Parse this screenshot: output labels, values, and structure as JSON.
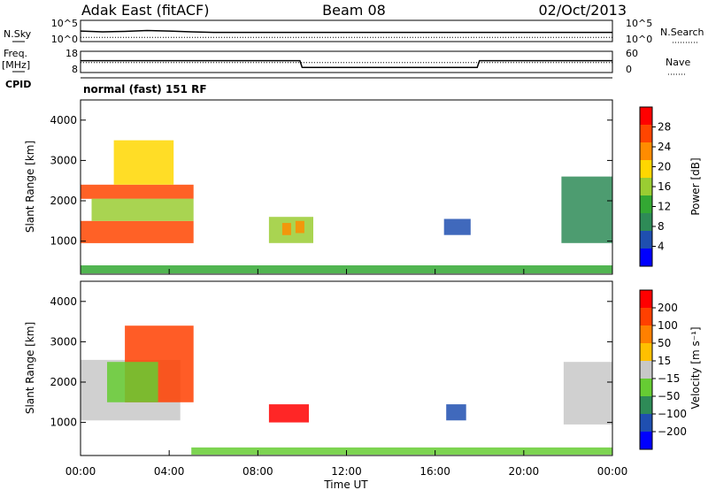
{
  "header": {
    "station": "Adak East (fitACF)",
    "beam": "Beam 08",
    "date": "02/Oct/2013"
  },
  "noise_panel": {
    "left_label": "N.Sky",
    "left_ticks": [
      "10^5",
      "10^0"
    ],
    "right_ticks": [
      "10^5",
      "10^0"
    ],
    "right_label": "N.Search"
  },
  "freq_panel": {
    "left_label_top": "Freq.",
    "left_label_unit": "[MHz]",
    "left_ticks": [
      "18",
      "8"
    ],
    "right_ticks": [
      "60",
      "0"
    ],
    "right_label": "Nave",
    "cpid_label": "CPID"
  },
  "cpid_panel": {
    "text": "normal (fast) 151 RF"
  },
  "x_axis": {
    "label": "Time UT",
    "ticks": [
      "00:00",
      "04:00",
      "08:00",
      "12:00",
      "16:00",
      "20:00",
      "00:00"
    ]
  },
  "power_panel": {
    "ylabel": "Slant Range [km]",
    "yticks": [
      "4000",
      "3000",
      "2000",
      "1000"
    ],
    "colorbar_label": "Power [dB]",
    "colorbar_ticks": [
      "28",
      "24",
      "20",
      "16",
      "12",
      "8",
      "4"
    ],
    "colors": [
      "#0000ff",
      "#1f4fb0",
      "#2e8b57",
      "#33a833",
      "#9acd32",
      "#ffd700",
      "#ff8c00",
      "#ff4500",
      "#ff0000"
    ]
  },
  "velocity_panel": {
    "ylabel": "Slant Range [km]",
    "yticks": [
      "4000",
      "3000",
      "2000",
      "1000"
    ],
    "colorbar_label": "Velocity [m s⁻¹]",
    "colorbar_ticks": [
      "200",
      "100",
      "50",
      "15",
      "−15",
      "−50",
      "−100",
      "−200"
    ],
    "colors": [
      "#0000ff",
      "#1f4fb0",
      "#2e8b57",
      "#66cc33",
      "#c8c8c8",
      "#ffc000",
      "#ff8000",
      "#ff4000",
      "#ff0000"
    ]
  },
  "chart_data": [
    {
      "type": "line",
      "title": "N.Sky / N.Search",
      "x_range_hours": [
        0,
        24
      ],
      "y_scale": "log",
      "ylim": [
        1,
        100000
      ],
      "series": [
        {
          "name": "N.Sky",
          "x": [
            0,
            1,
            2,
            3,
            4,
            5,
            6,
            8,
            10,
            12,
            14,
            16,
            18,
            20,
            22,
            24
          ],
          "values": [
            300,
            200,
            250,
            400,
            300,
            200,
            150,
            150,
            150,
            150,
            150,
            150,
            150,
            150,
            150,
            150
          ]
        },
        {
          "name": "N.Search",
          "x": [
            0,
            24
          ],
          "values": [
            10,
            10
          ]
        }
      ]
    },
    {
      "type": "line",
      "title": "Freq. / Nave",
      "x_range_hours": [
        0,
        24
      ],
      "series": [
        {
          "name": "Freq. [MHz]",
          "x": [
            0,
            9.9,
            10,
            17.9,
            18,
            24
          ],
          "values": [
            13.6,
            13.6,
            10.4,
            10.4,
            13.6,
            13.6
          ]
        },
        {
          "name": "Nave",
          "x": [
            0,
            24
          ],
          "values": [
            28,
            28
          ]
        }
      ]
    },
    {
      "type": "heatmap",
      "title": "Power [dB]",
      "x_range_hours": [
        0,
        24
      ],
      "y_range_km": [
        180,
        4500
      ],
      "z_range": [
        0,
        30
      ],
      "regions": [
        {
          "t0": 0,
          "t1": 5.1,
          "r0": 950,
          "r1": 1500,
          "z": 26
        },
        {
          "t0": 0,
          "t1": 5.1,
          "r0": 2050,
          "r1": 2400,
          "z": 24
        },
        {
          "t0": 0.5,
          "t1": 5.1,
          "r0": 1500,
          "r1": 2050,
          "z": 14
        },
        {
          "t0": 1.5,
          "t1": 4.2,
          "r0": 2400,
          "r1": 3500,
          "z": 18
        },
        {
          "t0": 8.5,
          "t1": 10.5,
          "r0": 950,
          "r1": 1600,
          "z": 14
        },
        {
          "t0": 9.1,
          "t1": 9.5,
          "r0": 1150,
          "r1": 1450,
          "z": 22
        },
        {
          "t0": 9.7,
          "t1": 10.1,
          "r0": 1200,
          "r1": 1500,
          "z": 20
        },
        {
          "t0": 16.4,
          "t1": 17.6,
          "r0": 1150,
          "r1": 1550,
          "z": 6
        },
        {
          "t0": 21.7,
          "t1": 24,
          "r0": 950,
          "r1": 2600,
          "z": 8
        },
        {
          "t0": 0,
          "t1": 24,
          "r0": 200,
          "r1": 400,
          "z": 10
        }
      ]
    },
    {
      "type": "heatmap",
      "title": "Velocity [m s⁻¹]",
      "x_range_hours": [
        0,
        24
      ],
      "y_range_km": [
        180,
        4500
      ],
      "z_range": [
        -200,
        200
      ],
      "regions": [
        {
          "t0": 0,
          "t1": 4.5,
          "r0": 1050,
          "r1": 2550,
          "z": 0
        },
        {
          "t0": 2,
          "t1": 5.1,
          "r0": 1500,
          "r1": 3400,
          "z": 150
        },
        {
          "t0": 1.2,
          "t1": 3.5,
          "r0": 1500,
          "r1": 2500,
          "z": -60
        },
        {
          "t0": 8.5,
          "t1": 10.3,
          "r0": 1000,
          "r1": 1450,
          "z": 200
        },
        {
          "t0": 16.5,
          "t1": 17.4,
          "r0": 1050,
          "r1": 1450,
          "z": -120
        },
        {
          "t0": 21.8,
          "t1": 24,
          "r0": 950,
          "r1": 2500,
          "z": 0
        },
        {
          "t0": 5,
          "t1": 24,
          "r0": 200,
          "r1": 380,
          "z": -40
        }
      ]
    }
  ]
}
